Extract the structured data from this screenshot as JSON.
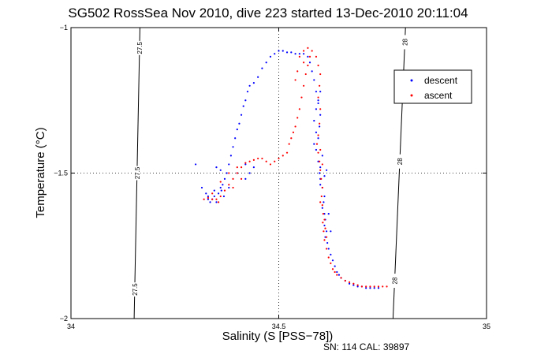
{
  "chart_data": {
    "type": "scatter",
    "title": "SG502 RossSea Nov 2010, dive 223 started 13-Dec-2010 20:11:04",
    "xlabel": "Salinity (S [PSS−78])",
    "ylabel": "Temperature (°C)",
    "xlim": [
      34,
      35
    ],
    "ylim": [
      -2,
      -1
    ],
    "xticks": [
      34,
      34.5,
      35
    ],
    "xtick_labels": [
      "34",
      "34.5",
      "35"
    ],
    "yticks": [
      -2,
      -1.5,
      -1
    ],
    "ytick_labels": [
      "−2",
      "−1.5",
      "−1"
    ],
    "grid": "dotted lines at x=34.5 and y=-1.5",
    "legend_position": "top-right",
    "colors": {
      "descent": "#0000ff",
      "ascent": "#ff0000",
      "contour": "#000000"
    },
    "density_contours": [
      {
        "label": "27.5",
        "points": [
          [
            34.166,
            -1
          ],
          [
            34.152,
            -2
          ]
        ],
        "label_at": [
          -1.07,
          -1.5,
          -1.9
        ]
      },
      {
        "label": "28",
        "points": [
          [
            34.805,
            -1
          ],
          [
            34.775,
            -2
          ]
        ],
        "label_at": [
          -1.05,
          -1.46,
          -1.87
        ]
      }
    ],
    "series": [
      {
        "name": "descent",
        "marker": "dot",
        "points": [
          [
            34.325,
            -1.57
          ],
          [
            34.33,
            -1.59
          ],
          [
            34.335,
            -1.6
          ],
          [
            34.34,
            -1.59
          ],
          [
            34.345,
            -1.58
          ],
          [
            34.35,
            -1.6
          ],
          [
            34.355,
            -1.57
          ],
          [
            34.36,
            -1.55
          ],
          [
            34.365,
            -1.54
          ],
          [
            34.37,
            -1.52
          ],
          [
            34.368,
            -1.58
          ],
          [
            34.362,
            -1.56
          ],
          [
            34.375,
            -1.5
          ],
          [
            34.38,
            -1.47
          ],
          [
            34.385,
            -1.44
          ],
          [
            34.39,
            -1.41
          ],
          [
            34.395,
            -1.38
          ],
          [
            34.4,
            -1.35
          ],
          [
            34.405,
            -1.33
          ],
          [
            34.41,
            -1.3
          ],
          [
            34.415,
            -1.27
          ],
          [
            34.42,
            -1.25
          ],
          [
            34.425,
            -1.22
          ],
          [
            34.43,
            -1.2
          ],
          [
            34.44,
            -1.19
          ],
          [
            34.45,
            -1.17
          ],
          [
            34.46,
            -1.14
          ],
          [
            34.47,
            -1.12
          ],
          [
            34.48,
            -1.1
          ],
          [
            34.49,
            -1.09
          ],
          [
            34.5,
            -1.08
          ],
          [
            34.51,
            -1.08
          ],
          [
            34.52,
            -1.085
          ],
          [
            34.53,
            -1.085
          ],
          [
            34.54,
            -1.09
          ],
          [
            34.55,
            -1.09
          ],
          [
            34.56,
            -1.09
          ],
          [
            34.57,
            -1.1
          ],
          [
            34.575,
            -1.12
          ],
          [
            34.58,
            -1.15
          ],
          [
            34.585,
            -1.18
          ],
          [
            34.59,
            -1.22
          ],
          [
            34.595,
            -1.26
          ],
          [
            34.6,
            -1.3
          ],
          [
            34.598,
            -1.34
          ],
          [
            34.595,
            -1.38
          ],
          [
            34.59,
            -1.42
          ],
          [
            34.595,
            -1.46
          ],
          [
            34.6,
            -1.48
          ],
          [
            34.598,
            -1.5
          ],
          [
            34.6,
            -1.52
          ],
          [
            34.605,
            -1.55
          ],
          [
            34.61,
            -1.58
          ],
          [
            34.608,
            -1.6
          ],
          [
            34.605,
            -1.62
          ],
          [
            34.61,
            -1.64
          ],
          [
            34.612,
            -1.66
          ],
          [
            34.61,
            -1.68
          ],
          [
            34.615,
            -1.7
          ],
          [
            34.612,
            -1.72
          ],
          [
            34.617,
            -1.74
          ],
          [
            34.62,
            -1.76
          ],
          [
            34.625,
            -1.78
          ],
          [
            34.63,
            -1.8
          ],
          [
            34.635,
            -1.82
          ],
          [
            34.64,
            -1.84
          ],
          [
            34.645,
            -1.85
          ],
          [
            34.65,
            -1.86
          ],
          [
            34.66,
            -1.87
          ],
          [
            34.67,
            -1.88
          ],
          [
            34.68,
            -1.885
          ],
          [
            34.69,
            -1.89
          ],
          [
            34.7,
            -1.89
          ],
          [
            34.71,
            -1.895
          ],
          [
            34.72,
            -1.895
          ],
          [
            34.73,
            -1.895
          ],
          [
            34.74,
            -1.895
          ],
          [
            34.3,
            -1.47
          ],
          [
            34.315,
            -1.55
          ],
          [
            34.33,
            -1.58
          ],
          [
            34.345,
            -1.56
          ],
          [
            34.36,
            -1.49
          ],
          [
            34.35,
            -1.48
          ],
          [
            34.38,
            -1.55
          ],
          [
            34.4,
            -1.5
          ],
          [
            34.42,
            -1.47
          ],
          [
            34.44,
            -1.48
          ],
          [
            34.43,
            -1.5
          ],
          [
            34.42,
            -1.52
          ],
          [
            34.585,
            -1.4
          ],
          [
            34.59,
            -1.36
          ],
          [
            34.585,
            -1.32
          ],
          [
            34.59,
            -1.28
          ],
          [
            34.595,
            -1.25
          ],
          [
            34.6,
            -1.22
          ],
          [
            34.605,
            -1.44
          ],
          [
            34.6,
            -1.54
          ],
          [
            34.61,
            -1.51
          ],
          [
            34.615,
            -1.49
          ],
          [
            34.62,
            -1.64
          ],
          [
            34.625,
            -1.7
          ]
        ]
      },
      {
        "name": "ascent",
        "marker": "dot",
        "points": [
          [
            34.32,
            -1.59
          ],
          [
            34.33,
            -1.585
          ],
          [
            34.34,
            -1.59
          ],
          [
            34.35,
            -1.59
          ],
          [
            34.36,
            -1.58
          ],
          [
            34.355,
            -1.6
          ],
          [
            34.37,
            -1.56
          ],
          [
            34.38,
            -1.54
          ],
          [
            34.39,
            -1.52
          ],
          [
            34.4,
            -1.5
          ],
          [
            34.41,
            -1.48
          ],
          [
            34.42,
            -1.465
          ],
          [
            34.43,
            -1.46
          ],
          [
            34.44,
            -1.455
          ],
          [
            34.45,
            -1.45
          ],
          [
            34.46,
            -1.45
          ],
          [
            34.47,
            -1.46
          ],
          [
            34.48,
            -1.47
          ],
          [
            34.49,
            -1.46
          ],
          [
            34.5,
            -1.45
          ],
          [
            34.51,
            -1.44
          ],
          [
            34.52,
            -1.43
          ],
          [
            34.525,
            -1.4
          ],
          [
            34.53,
            -1.38
          ],
          [
            34.535,
            -1.36
          ],
          [
            34.54,
            -1.34
          ],
          [
            34.545,
            -1.31
          ],
          [
            34.55,
            -1.28
          ],
          [
            34.555,
            -1.24
          ],
          [
            34.56,
            -1.2
          ],
          [
            34.565,
            -1.16
          ],
          [
            34.57,
            -1.13
          ],
          [
            34.575,
            -1.1
          ],
          [
            34.58,
            -1.08
          ],
          [
            34.59,
            -1.1
          ],
          [
            34.595,
            -1.13
          ],
          [
            34.6,
            -1.16
          ],
          [
            34.598,
            -1.2
          ],
          [
            34.595,
            -1.24
          ],
          [
            34.6,
            -1.28
          ],
          [
            34.598,
            -1.33
          ],
          [
            34.595,
            -1.37
          ],
          [
            34.592,
            -1.4
          ],
          [
            34.595,
            -1.43
          ],
          [
            34.598,
            -1.46
          ],
          [
            34.6,
            -1.49
          ],
          [
            34.602,
            -1.52
          ],
          [
            34.605,
            -1.55
          ],
          [
            34.603,
            -1.58
          ],
          [
            34.605,
            -1.61
          ],
          [
            34.607,
            -1.64
          ],
          [
            34.606,
            -1.67
          ],
          [
            34.608,
            -1.7
          ],
          [
            34.61,
            -1.73
          ],
          [
            34.615,
            -1.76
          ],
          [
            34.62,
            -1.79
          ],
          [
            34.625,
            -1.81
          ],
          [
            34.63,
            -1.83
          ],
          [
            34.635,
            -1.84
          ],
          [
            34.64,
            -1.85
          ],
          [
            34.65,
            -1.86
          ],
          [
            34.66,
            -1.87
          ],
          [
            34.67,
            -1.875
          ],
          [
            34.68,
            -1.88
          ],
          [
            34.69,
            -1.885
          ],
          [
            34.7,
            -1.89
          ],
          [
            34.71,
            -1.89
          ],
          [
            34.72,
            -1.89
          ],
          [
            34.73,
            -1.89
          ],
          [
            34.74,
            -1.89
          ],
          [
            34.75,
            -1.89
          ],
          [
            34.76,
            -1.89
          ],
          [
            34.34,
            -1.57
          ],
          [
            34.36,
            -1.53
          ],
          [
            34.38,
            -1.5
          ],
          [
            34.4,
            -1.48
          ],
          [
            34.39,
            -1.55
          ],
          [
            34.41,
            -1.52
          ],
          [
            34.55,
            -1.1
          ],
          [
            34.56,
            -1.12
          ],
          [
            34.545,
            -1.15
          ],
          [
            34.54,
            -1.18
          ],
          [
            34.56,
            -1.08
          ],
          [
            34.57,
            -1.07
          ],
          [
            34.6,
            -1.42
          ],
          [
            34.605,
            -1.47
          ],
          [
            34.6,
            -1.6
          ],
          [
            34.61,
            -1.66
          ],
          [
            34.612,
            -1.69
          ],
          [
            34.615,
            -1.72
          ]
        ]
      }
    ]
  },
  "footer": {
    "serial": "SN: 114  CAL: 39897"
  }
}
